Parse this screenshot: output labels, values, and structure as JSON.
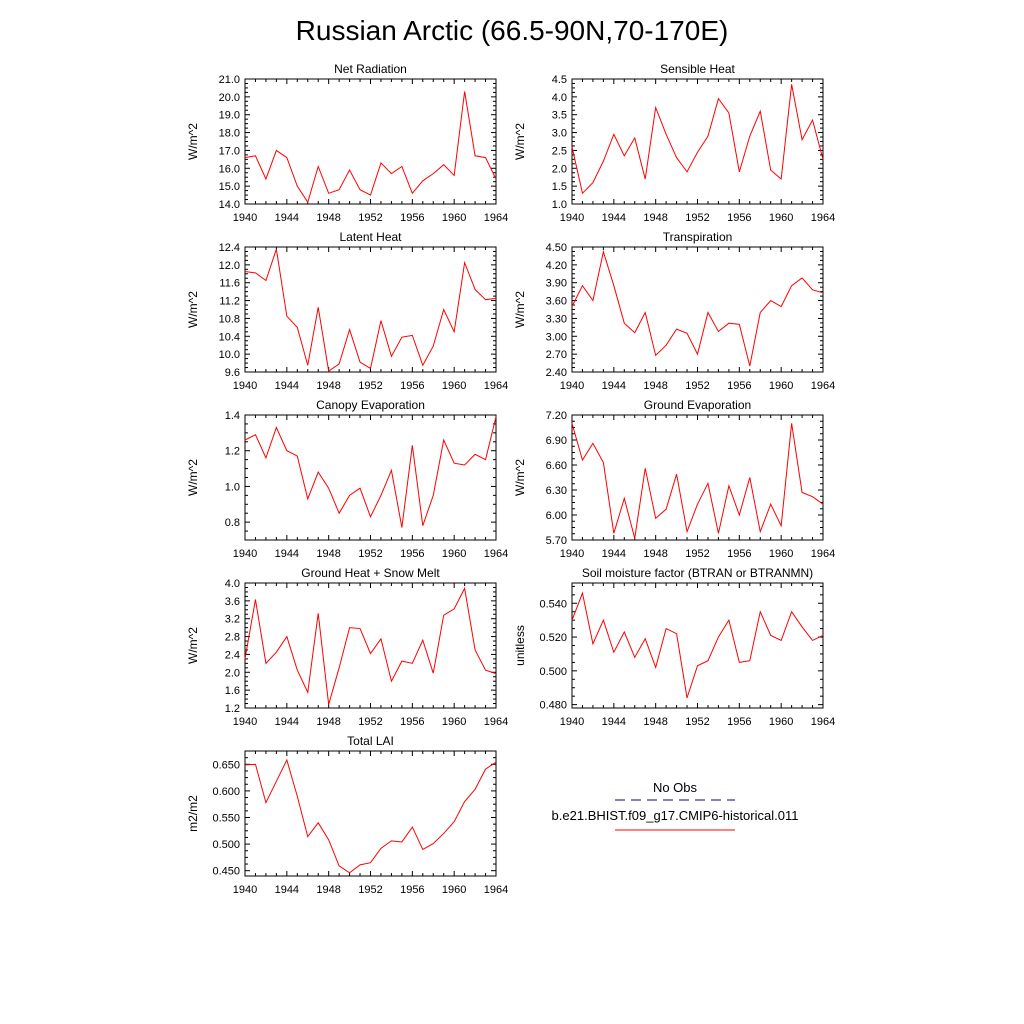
{
  "title": "Russian Arctic (66.5-90N,70-170E)",
  "colors": {
    "model": "#ff0000",
    "obs": "#00008b",
    "axis": "#000000"
  },
  "legend": {
    "obs_label": "No Obs",
    "model_label": "b.e21.BHIST.f09_g17.CMIP6-historical.011"
  },
  "chart_data": [
    {
      "type": "line",
      "title": "Net Radiation",
      "ylabel": "W/m^2",
      "x_ticks": [
        1940,
        1944,
        1948,
        1952,
        1956,
        1960,
        1964
      ],
      "xlim": [
        1940,
        1964
      ],
      "y_ticks": [
        14.0,
        15.0,
        16.0,
        17.0,
        18.0,
        19.0,
        20.0,
        21.0
      ],
      "y_tick_labels": [
        "14.0",
        "15.0",
        "16.0",
        "17.0",
        "18.0",
        "19.0",
        "20.0",
        "21.0"
      ],
      "ylim": [
        14.0,
        21.0
      ],
      "series": [
        {
          "x": [
            1940,
            1941,
            1942,
            1943,
            1944,
            1945,
            1946,
            1947,
            1948,
            1949,
            1950,
            1951,
            1952,
            1953,
            1954,
            1955,
            1956,
            1957,
            1958,
            1959,
            1960,
            1961,
            1962,
            1963,
            1964
          ],
          "values": [
            16.6,
            16.7,
            15.4,
            17.0,
            16.6,
            15.0,
            14.1,
            16.1,
            14.6,
            14.8,
            15.9,
            14.8,
            14.5,
            16.3,
            15.7,
            16.1,
            14.6,
            15.3,
            15.7,
            16.2,
            15.6,
            20.3,
            16.7,
            16.6,
            15.4
          ]
        }
      ]
    },
    {
      "type": "line",
      "title": "Sensible Heat",
      "ylabel": "W/m^2",
      "x_ticks": [
        1940,
        1944,
        1948,
        1952,
        1956,
        1960,
        1964
      ],
      "xlim": [
        1940,
        1964
      ],
      "y_ticks": [
        1.0,
        1.5,
        2.0,
        2.5,
        3.0,
        3.5,
        4.0,
        4.5
      ],
      "y_tick_labels": [
        "1.0",
        "1.5",
        "2.0",
        "2.5",
        "3.0",
        "3.5",
        "4.0",
        "4.5"
      ],
      "ylim": [
        1.0,
        4.5
      ],
      "series": [
        {
          "x": [
            1940,
            1941,
            1942,
            1943,
            1944,
            1945,
            1946,
            1947,
            1948,
            1949,
            1950,
            1951,
            1952,
            1953,
            1954,
            1955,
            1956,
            1957,
            1958,
            1959,
            1960,
            1961,
            1962,
            1963,
            1964
          ],
          "values": [
            2.6,
            1.3,
            1.6,
            2.2,
            2.95,
            2.35,
            2.85,
            1.7,
            3.7,
            2.95,
            2.3,
            1.9,
            2.45,
            2.9,
            3.95,
            3.55,
            1.9,
            2.9,
            3.6,
            1.95,
            1.7,
            4.35,
            2.8,
            3.35,
            2.25
          ]
        }
      ]
    },
    {
      "type": "line",
      "title": "Latent Heat",
      "ylabel": "W/m^2",
      "x_ticks": [
        1940,
        1944,
        1948,
        1952,
        1956,
        1960,
        1964
      ],
      "xlim": [
        1940,
        1964
      ],
      "y_ticks": [
        9.6,
        10.0,
        10.4,
        10.8,
        11.2,
        11.6,
        12.0,
        12.4
      ],
      "y_tick_labels": [
        "9.6",
        "10.0",
        "10.4",
        "10.8",
        "11.2",
        "11.6",
        "12.0",
        "12.4"
      ],
      "ylim": [
        9.6,
        12.4
      ],
      "series": [
        {
          "x": [
            1940,
            1941,
            1942,
            1943,
            1944,
            1945,
            1946,
            1947,
            1948,
            1949,
            1950,
            1951,
            1952,
            1953,
            1954,
            1955,
            1956,
            1957,
            1958,
            1959,
            1960,
            1961,
            1962,
            1963,
            1964
          ],
          "values": [
            11.85,
            11.82,
            11.65,
            12.35,
            10.85,
            10.6,
            9.75,
            11.05,
            9.62,
            9.78,
            10.55,
            9.82,
            9.68,
            10.75,
            9.95,
            10.38,
            10.42,
            9.75,
            10.18,
            11.0,
            10.5,
            12.05,
            11.45,
            11.22,
            11.25
          ]
        }
      ]
    },
    {
      "type": "line",
      "title": "Transpiration",
      "ylabel": "W/m^2",
      "x_ticks": [
        1940,
        1944,
        1948,
        1952,
        1956,
        1960,
        1964
      ],
      "xlim": [
        1940,
        1964
      ],
      "y_ticks": [
        2.4,
        2.7,
        3.0,
        3.3,
        3.6,
        3.9,
        4.2,
        4.5
      ],
      "y_tick_labels": [
        "2.40",
        "2.70",
        "3.00",
        "3.30",
        "3.60",
        "3.90",
        "4.20",
        "4.50"
      ],
      "ylim": [
        2.4,
        4.5
      ],
      "series": [
        {
          "x": [
            1940,
            1941,
            1942,
            1943,
            1944,
            1945,
            1946,
            1947,
            1948,
            1949,
            1950,
            1951,
            1952,
            1953,
            1954,
            1955,
            1956,
            1957,
            1958,
            1959,
            1960,
            1961,
            1962,
            1963,
            1964
          ],
          "values": [
            3.5,
            3.85,
            3.6,
            4.42,
            3.85,
            3.22,
            3.06,
            3.4,
            2.68,
            2.85,
            3.12,
            3.05,
            2.7,
            3.4,
            3.08,
            3.22,
            3.2,
            2.5,
            3.4,
            3.6,
            3.5,
            3.85,
            3.98,
            3.78,
            3.73
          ]
        }
      ]
    },
    {
      "type": "line",
      "title": "Canopy Evaporation",
      "ylabel": "W/m^2",
      "x_ticks": [
        1940,
        1944,
        1948,
        1952,
        1956,
        1960,
        1964
      ],
      "xlim": [
        1940,
        1964
      ],
      "y_ticks": [
        0.8,
        1.0,
        1.2,
        1.4
      ],
      "y_tick_labels": [
        "0.8",
        "1.0",
        "1.2",
        "1.4"
      ],
      "ylim": [
        0.7,
        1.4
      ],
      "series": [
        {
          "x": [
            1940,
            1941,
            1942,
            1943,
            1944,
            1945,
            1946,
            1947,
            1948,
            1949,
            1950,
            1951,
            1952,
            1953,
            1954,
            1955,
            1956,
            1957,
            1958,
            1959,
            1960,
            1961,
            1962,
            1963,
            1964
          ],
          "values": [
            1.26,
            1.29,
            1.16,
            1.33,
            1.2,
            1.17,
            0.93,
            1.08,
            0.99,
            0.85,
            0.95,
            0.99,
            0.83,
            0.95,
            1.09,
            0.77,
            1.23,
            0.78,
            0.95,
            1.26,
            1.13,
            1.12,
            1.18,
            1.15,
            1.39
          ]
        }
      ]
    },
    {
      "type": "line",
      "title": "Ground Evaporation",
      "ylabel": "W/m^2",
      "x_ticks": [
        1940,
        1944,
        1948,
        1952,
        1956,
        1960,
        1964
      ],
      "xlim": [
        1940,
        1964
      ],
      "y_ticks": [
        5.7,
        6.0,
        6.3,
        6.6,
        6.9,
        7.2
      ],
      "y_tick_labels": [
        "5.70",
        "6.00",
        "6.30",
        "6.60",
        "6.90",
        "7.20"
      ],
      "ylim": [
        5.7,
        7.2
      ],
      "series": [
        {
          "x": [
            1940,
            1941,
            1942,
            1943,
            1944,
            1945,
            1946,
            1947,
            1948,
            1949,
            1950,
            1951,
            1952,
            1953,
            1954,
            1955,
            1956,
            1957,
            1958,
            1959,
            1960,
            1961,
            1962,
            1963,
            1964
          ],
          "values": [
            7.1,
            6.66,
            6.86,
            6.63,
            5.78,
            6.2,
            5.72,
            6.56,
            5.96,
            6.07,
            6.49,
            5.8,
            6.13,
            6.38,
            5.78,
            6.35,
            6.0,
            6.45,
            5.8,
            6.13,
            5.87,
            7.1,
            6.27,
            6.22,
            6.13
          ]
        }
      ]
    },
    {
      "type": "line",
      "title": "Ground Heat + Snow Melt",
      "ylabel": "W/m^2",
      "x_ticks": [
        1940,
        1944,
        1948,
        1952,
        1956,
        1960,
        1964
      ],
      "xlim": [
        1940,
        1964
      ],
      "y_ticks": [
        1.2,
        1.6,
        2.0,
        2.4,
        2.8,
        3.2,
        3.6,
        4.0
      ],
      "y_tick_labels": [
        "1.2",
        "1.6",
        "2.0",
        "2.4",
        "2.8",
        "3.2",
        "3.6",
        "4.0"
      ],
      "ylim": [
        1.2,
        4.0
      ],
      "series": [
        {
          "x": [
            1940,
            1941,
            1942,
            1943,
            1944,
            1945,
            1946,
            1947,
            1948,
            1949,
            1950,
            1951,
            1952,
            1953,
            1954,
            1955,
            1956,
            1957,
            1958,
            1959,
            1960,
            1961,
            1962,
            1963,
            1964
          ],
          "values": [
            2.3,
            3.63,
            2.2,
            2.45,
            2.8,
            2.05,
            1.55,
            3.32,
            1.28,
            2.1,
            3.0,
            2.98,
            2.42,
            2.75,
            1.8,
            2.25,
            2.2,
            2.72,
            1.98,
            3.28,
            3.42,
            3.88,
            2.5,
            2.05,
            1.97
          ]
        }
      ]
    },
    {
      "type": "line",
      "title": "Soil moisture factor (BTRAN or BTRANMN)",
      "ylabel": "unitless",
      "x_ticks": [
        1940,
        1944,
        1948,
        1952,
        1956,
        1960,
        1964
      ],
      "xlim": [
        1940,
        1964
      ],
      "y_ticks": [
        0.48,
        0.5,
        0.52,
        0.54
      ],
      "y_tick_labels": [
        "0.480",
        "0.500",
        "0.520",
        "0.540"
      ],
      "ylim": [
        0.478,
        0.552
      ],
      "series": [
        {
          "x": [
            1940,
            1941,
            1942,
            1943,
            1944,
            1945,
            1946,
            1947,
            1948,
            1949,
            1950,
            1951,
            1952,
            1953,
            1954,
            1955,
            1956,
            1957,
            1958,
            1959,
            1960,
            1961,
            1962,
            1963,
            1964
          ],
          "values": [
            0.53,
            0.546,
            0.516,
            0.53,
            0.511,
            0.523,
            0.508,
            0.519,
            0.502,
            0.525,
            0.522,
            0.484,
            0.503,
            0.506,
            0.52,
            0.53,
            0.505,
            0.506,
            0.535,
            0.521,
            0.518,
            0.535,
            0.526,
            0.518,
            0.521
          ]
        }
      ]
    },
    {
      "type": "line",
      "title": "Total LAI",
      "ylabel": "m2/m2",
      "x_ticks": [
        1940,
        1944,
        1948,
        1952,
        1956,
        1960,
        1964
      ],
      "xlim": [
        1940,
        1964
      ],
      "y_ticks": [
        0.45,
        0.5,
        0.55,
        0.6,
        0.65
      ],
      "y_tick_labels": [
        "0.450",
        "0.500",
        "0.550",
        "0.600",
        "0.650"
      ],
      "ylim": [
        0.44,
        0.675
      ],
      "series": [
        {
          "x": [
            1940,
            1941,
            1942,
            1943,
            1944,
            1945,
            1946,
            1947,
            1948,
            1949,
            1950,
            1951,
            1952,
            1953,
            1954,
            1955,
            1956,
            1957,
            1958,
            1959,
            1960,
            1961,
            1962,
            1963,
            1964
          ],
          "values": [
            0.649,
            0.65,
            0.578,
            0.618,
            0.658,
            0.59,
            0.514,
            0.54,
            0.508,
            0.459,
            0.446,
            0.461,
            0.465,
            0.492,
            0.506,
            0.504,
            0.532,
            0.49,
            0.501,
            0.52,
            0.542,
            0.58,
            0.603,
            0.641,
            0.654
          ]
        }
      ]
    }
  ]
}
